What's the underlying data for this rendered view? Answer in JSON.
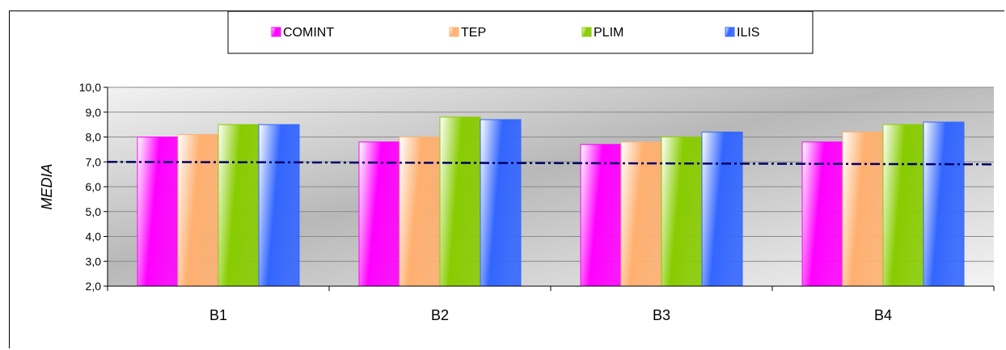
{
  "chart_data": {
    "type": "bar",
    "categories": [
      "B1",
      "B2",
      "B3",
      "B4"
    ],
    "series": [
      {
        "name": "COMINT",
        "values": [
          8.0,
          7.8,
          7.7,
          7.8
        ],
        "color": "#ff00ff"
      },
      {
        "name": "TEP",
        "values": [
          8.1,
          8.0,
          7.8,
          8.2
        ],
        "color": "#ffb070"
      },
      {
        "name": "PLIM",
        "values": [
          8.5,
          8.8,
          8.0,
          8.5
        ],
        "color": "#88cc00"
      },
      {
        "name": "ILIS",
        "values": [
          8.5,
          8.7,
          8.2,
          8.6
        ],
        "color": "#3366ff"
      }
    ],
    "ylabel": "MEDIA",
    "xlabel": "",
    "ylim": [
      2.0,
      10.0
    ],
    "ytick_step": 1.0,
    "yticks": [
      "2,0",
      "3,0",
      "4,0",
      "5,0",
      "6,0",
      "7,0",
      "8,0",
      "9,0",
      "10,0"
    ],
    "reference_line": {
      "y_start": 7.0,
      "y_end": 6.9,
      "style": "dash-dot",
      "color": "#000066"
    },
    "grid": true,
    "legend": "top-center",
    "plot_background": "grey-gradient"
  }
}
